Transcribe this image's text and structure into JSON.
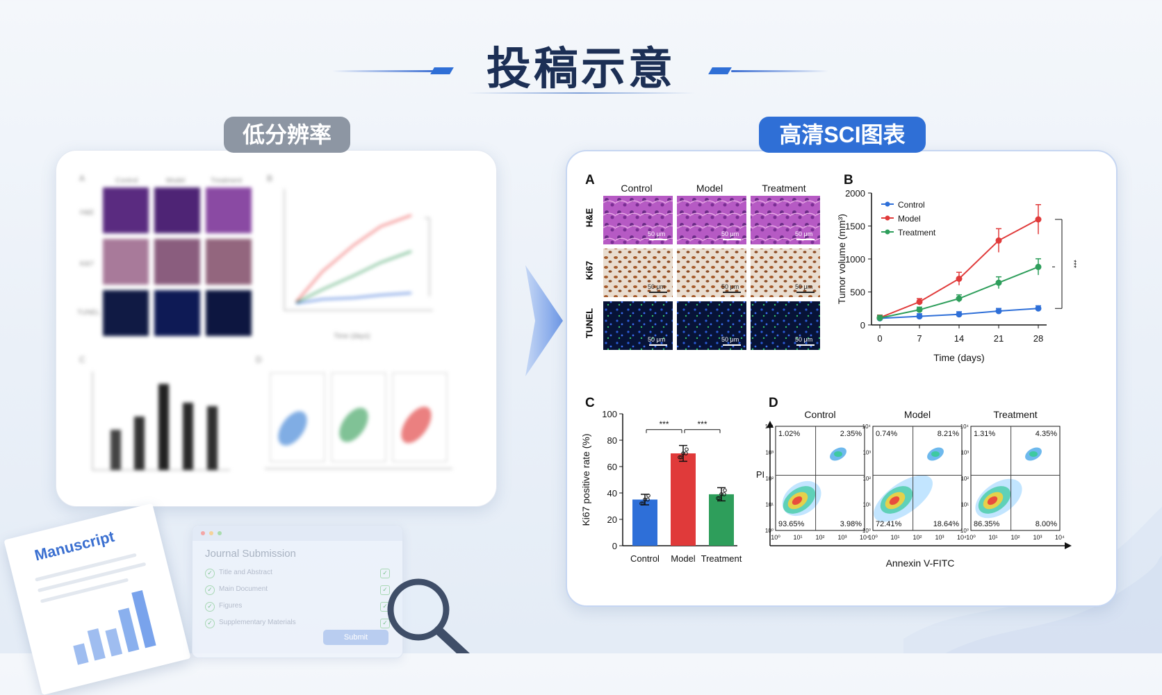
{
  "title": "投稿示意",
  "left_label": "低分辨率",
  "right_label": "高清SCI图表",
  "colors": {
    "control": "#2e6fd8",
    "model": "#e03a3a",
    "treatment": "#2e9e5b",
    "accent": "#2f6fd6",
    "pill_gray": "#8d96a3"
  },
  "manuscript": {
    "title": "Manuscript"
  },
  "journal": {
    "title": "Journal Submission",
    "items": [
      "Title and Abstract",
      "Main Document",
      "Figures",
      "Supplementary Materials"
    ],
    "submit": "Submit"
  },
  "figure": {
    "panel_a": {
      "label": "A",
      "columns": [
        "Control",
        "Model",
        "Treatment"
      ],
      "rows": [
        "H&E",
        "Ki67",
        "TUNEL"
      ],
      "scale": "50 μm"
    },
    "panel_b": {
      "label": "B"
    },
    "panel_c": {
      "label": "C"
    },
    "panel_d": {
      "label": "D",
      "ylabel": "PI",
      "xlabel": "Annexin V-FITC",
      "groups": [
        {
          "name": "Control",
          "q1": "1.02%",
          "q2": "2.35%",
          "q3": "93.65%",
          "q4": "3.98%"
        },
        {
          "name": "Model",
          "q1": "0.74%",
          "q2": "8.21%",
          "q3": "72.41%",
          "q4": "18.64%"
        },
        {
          "name": "Treatment",
          "q1": "1.31%",
          "q2": "4.35%",
          "q3": "86.35%",
          "q4": "8.00%"
        }
      ]
    }
  },
  "chart_data": [
    {
      "type": "line",
      "panel": "B",
      "xlabel": "Time (days)",
      "ylabel": "Tumor volume (mm³)",
      "x": [
        0,
        7,
        14,
        21,
        28
      ],
      "ylim": [
        0,
        2000
      ],
      "yticks": [
        0,
        500,
        1000,
        1500,
        2000
      ],
      "series": [
        {
          "name": "Control",
          "values": [
            100,
            130,
            160,
            210,
            250
          ]
        },
        {
          "name": "Model",
          "values": [
            110,
            350,
            700,
            1280,
            1600
          ]
        },
        {
          "name": "Treatment",
          "values": [
            105,
            230,
            400,
            640,
            880
          ]
        }
      ],
      "significance": "***",
      "legend": "top-left"
    },
    {
      "type": "bar",
      "panel": "C",
      "ylabel": "Ki67 positive rate (%)",
      "categories": [
        "Control",
        "Model",
        "Treatment"
      ],
      "values": [
        35,
        70,
        39
      ],
      "errors": [
        4,
        6,
        5
      ],
      "ylim": [
        0,
        100
      ],
      "yticks": [
        0,
        20,
        40,
        60,
        80,
        100
      ],
      "significance": [
        "***",
        "***"
      ]
    }
  ]
}
